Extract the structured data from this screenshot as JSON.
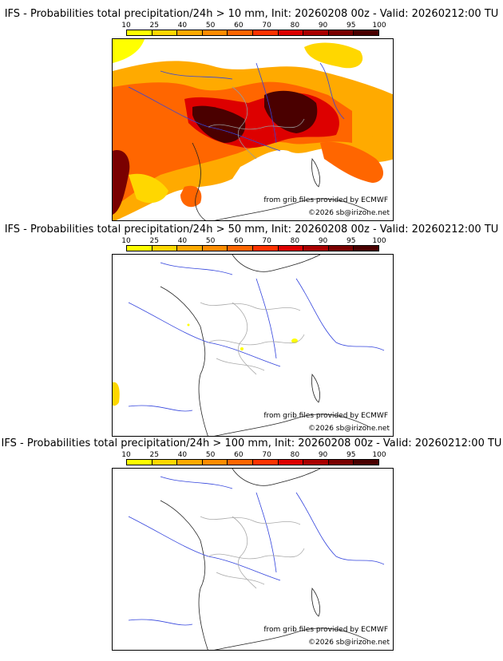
{
  "legend": {
    "ticks": [
      "10",
      "25",
      "40",
      "50",
      "60",
      "70",
      "80",
      "90",
      "95",
      "100"
    ],
    "colors": [
      "#ffff00",
      "#ffd700",
      "#ffaa00",
      "#ff8c00",
      "#ff6600",
      "#ff3300",
      "#dd0000",
      "#aa0000",
      "#7a0000",
      "#4a0000"
    ]
  },
  "panels": [
    {
      "title": "IFS - Probabilities total precipitation/24h > 10 mm, Init: 20260208 00z - Valid: 20260212:00 TU"
    },
    {
      "title": "IFS - Probabilities total precipitation/24h > 50 mm, Init: 20260208 00z - Valid: 20260212:00 TU"
    },
    {
      "title": "IFS - Probabilities total precipitation/24h > 100 mm, Init: 20260208 00z - Valid: 20260212:00 TU"
    }
  ],
  "credits": {
    "source": "from grib files provided by ECMWF",
    "copyright": "©2026 sb@irizone.net"
  }
}
